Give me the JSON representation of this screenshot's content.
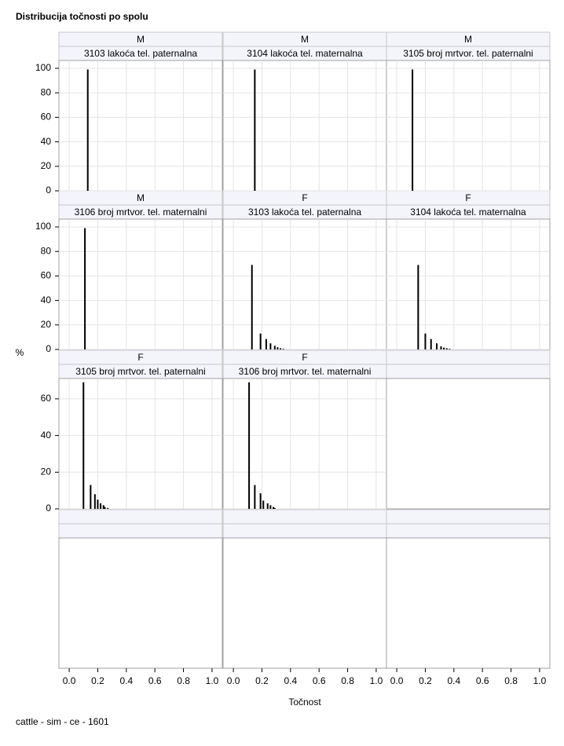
{
  "chart_data": {
    "type": "needle",
    "title": "Distribucija točnosti po spolu",
    "x_label": "Točnost",
    "y_label": "%",
    "footnote": "cattle - sim - ce - 1601",
    "xlim": [
      -0.072,
      1.072
    ],
    "xticks": [
      {
        "value": 0,
        "label": "0.0"
      },
      {
        "value": 0.2,
        "label": "0.2"
      },
      {
        "value": 0.4,
        "label": "0.4"
      },
      {
        "value": 0.6,
        "label": "0.6"
      },
      {
        "value": 0.8,
        "label": "0.8"
      },
      {
        "value": 1,
        "label": "1.0"
      }
    ],
    "color": "#000000",
    "grid": true,
    "rows": [
      {
        "ylim": [
          0,
          106.4
        ],
        "yticks": [
          0,
          20,
          40,
          60,
          80,
          100
        ],
        "panels": [
          {
            "sex": "M",
            "trait": "3103 lakoća tel. paternalna",
            "x": [
              0.13
            ],
            "values": [
              99
            ]
          },
          {
            "sex": "M",
            "trait": "3104 lakoća tel. maternalna",
            "x": [
              0.15
            ],
            "values": [
              99
            ]
          },
          {
            "sex": "M",
            "trait": "3105 broj mrtvor. tel. paternalni",
            "x": [
              0.11
            ],
            "values": [
              99
            ]
          }
        ]
      },
      {
        "ylim": [
          0,
          106.4
        ],
        "yticks": [
          0,
          20,
          40,
          60,
          80,
          100
        ],
        "panels": [
          {
            "sex": "M",
            "trait": "3106 broj mrtvor. tel. maternalni",
            "x": [
              0.11
            ],
            "values": [
              99
            ]
          },
          {
            "sex": "F",
            "trait": "3103 lakoća tel. paternalna",
            "x": [
              0.13,
              0.19,
              0.23,
              0.26,
              0.29,
              0.31,
              0.33,
              0.35
            ],
            "values": [
              69,
              13,
              8.5,
              5,
              3,
              1.8,
              1,
              0.5
            ]
          },
          {
            "sex": "F",
            "trait": "3104 lakoća tel. maternalna",
            "x": [
              0.15,
              0.2,
              0.24,
              0.28,
              0.31,
              0.33,
              0.35,
              0.37
            ],
            "values": [
              69,
              13,
              8.5,
              5,
              2.5,
              1.5,
              1,
              0.5
            ]
          }
        ]
      },
      {
        "ylim": [
          0,
          71.1
        ],
        "yticks": [
          0,
          20,
          40,
          60
        ],
        "panels": [
          {
            "sex": "F",
            "trait": "3105 broj mrtvor. tel. paternalni",
            "x": [
              0.1,
              0.15,
              0.18,
              0.2,
              0.22,
              0.24,
              0.25,
              0.27
            ],
            "values": [
              69,
              13,
              8,
              5,
              3,
              2,
              1,
              0.5
            ]
          },
          {
            "sex": "F",
            "trait": "3106 broj mrtvor. tel. maternalni",
            "x": [
              0.11,
              0.15,
              0.19,
              0.21,
              0.24,
              0.26,
              0.28,
              0.29
            ],
            "values": [
              69,
              13,
              8.5,
              4.5,
              3,
              2,
              1,
              0.5
            ]
          }
        ]
      }
    ]
  }
}
